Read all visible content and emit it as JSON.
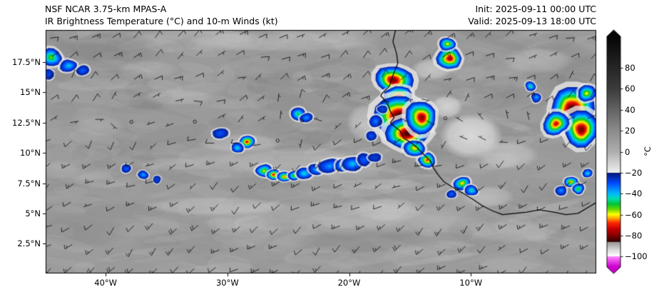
{
  "header": {
    "model": "NSF NCAR 3.75-km MPAS-A",
    "field": "IR Brightness Temperature (°C) and 10-m Winds (kt)",
    "init": "Init: 2025-09-11 00:00 UTC",
    "valid": "Valid: 2025-09-13 18:00 UTC"
  },
  "chart_data": {
    "type": "heatmap",
    "title": "IR Brightness Temperature (°C) and 10-m Winds (kt)",
    "model": "NSF NCAR 3.75-km MPAS-A",
    "init_time": "2025-09-11 00:00 UTC",
    "valid_time": "2025-09-13 18:00 UTC",
    "region": "West Africa and eastern tropical Atlantic",
    "lon_range": [
      -44.93,
      0.3
    ],
    "lat_range": [
      0.04,
      20.15
    ],
    "x_ticks": [
      {
        "label": "40°W",
        "lon": -40
      },
      {
        "label": "30°W",
        "lon": -30
      },
      {
        "label": "20°W",
        "lon": -20
      },
      {
        "label": "10°W",
        "lon": -10
      }
    ],
    "y_ticks": [
      {
        "label": "17.5°N",
        "lat": 17.5
      },
      {
        "label": "15°N",
        "lat": 15
      },
      {
        "label": "12.5°N",
        "lat": 12.5
      },
      {
        "label": "10°N",
        "lat": 10
      },
      {
        "label": "7.5°N",
        "lat": 7.5
      },
      {
        "label": "5°N",
        "lat": 5
      },
      {
        "label": "2.5°N",
        "lat": 2.5
      }
    ],
    "colorbar": {
      "label": "°C",
      "ticks": [
        80,
        60,
        40,
        20,
        0,
        -20,
        -40,
        -60,
        -80,
        -100
      ],
      "vmin": -110,
      "vmax": 110,
      "stops": [
        [
          110,
          "#060606"
        ],
        [
          60,
          "#3c3c3c"
        ],
        [
          20,
          "#8c8c8c"
        ],
        [
          0,
          "#aeaeae"
        ],
        [
          -20,
          "#f0f0f0"
        ],
        [
          -20.5,
          "#081878"
        ],
        [
          -30,
          "#0048ff"
        ],
        [
          -40,
          "#00b8ff"
        ],
        [
          -45,
          "#00ddb0"
        ],
        [
          -50,
          "#00c434"
        ],
        [
          -55,
          "#64d800"
        ],
        [
          -60,
          "#ffff00"
        ],
        [
          -64,
          "#ffa000"
        ],
        [
          -68,
          "#ff2800"
        ],
        [
          -74,
          "#c40000"
        ],
        [
          -80,
          "#840000"
        ],
        [
          -86,
          "#2e0000"
        ],
        [
          -86.5,
          "#969696"
        ],
        [
          -94,
          "#dadada"
        ],
        [
          -100,
          "#ffffff"
        ],
        [
          -100.5,
          "#ff80ff"
        ],
        [
          -110,
          "#cc00cc"
        ]
      ]
    },
    "background": "Mostly gray shades (IR ~0 to 30 °C, clear/low cloud); colored cells are cold convective tops below -20 °C",
    "features": [
      [
        -16.4,
        16.0,
        1.5,
        1.1,
        -80
      ],
      [
        -15.9,
        14.6,
        1.2,
        0.9,
        -76
      ],
      [
        -15.8,
        13.0,
        2.1,
        1.7,
        -86
      ],
      [
        -15.2,
        11.6,
        1.8,
        1.3,
        -84
      ],
      [
        -14.0,
        12.9,
        1.2,
        1.4,
        -78
      ],
      [
        -13.6,
        9.4,
        0.7,
        0.6,
        -68
      ],
      [
        -14.6,
        10.4,
        0.8,
        0.6,
        -62
      ],
      [
        -1.7,
        13.6,
        1.7,
        1.9,
        -84
      ],
      [
        -0.9,
        11.9,
        1.5,
        1.4,
        -80
      ],
      [
        -3.0,
        12.4,
        1.0,
        0.9,
        -72
      ],
      [
        -0.5,
        14.9,
        0.8,
        0.7,
        -60
      ],
      [
        -5.1,
        15.5,
        0.5,
        0.4,
        -48
      ],
      [
        -4.6,
        14.6,
        0.4,
        0.4,
        -40
      ],
      [
        -11.7,
        17.8,
        1.0,
        0.9,
        -76
      ],
      [
        -11.9,
        19.0,
        0.6,
        0.5,
        -60
      ],
      [
        -44.5,
        17.9,
        0.9,
        0.7,
        -55
      ],
      [
        -43.0,
        17.2,
        0.7,
        0.5,
        -42
      ],
      [
        -41.9,
        16.8,
        0.5,
        0.4,
        -34
      ],
      [
        -44.7,
        16.5,
        0.4,
        0.4,
        -30
      ],
      [
        -24.2,
        13.2,
        0.6,
        0.5,
        -50
      ],
      [
        -23.5,
        12.9,
        0.5,
        0.4,
        -38
      ],
      [
        -30.6,
        11.6,
        0.6,
        0.4,
        -32
      ],
      [
        -28.4,
        10.9,
        0.6,
        0.5,
        -72
      ],
      [
        -29.2,
        10.4,
        0.5,
        0.4,
        -45
      ],
      [
        -27.0,
        8.5,
        0.7,
        0.5,
        -58
      ],
      [
        -26.2,
        8.2,
        0.6,
        0.5,
        -72
      ],
      [
        -25.3,
        8.0,
        0.6,
        0.4,
        -66
      ],
      [
        -24.5,
        8.1,
        0.5,
        0.4,
        -55
      ],
      [
        -23.7,
        8.3,
        0.6,
        0.5,
        -45
      ],
      [
        -22.7,
        8.6,
        0.7,
        0.5,
        -40
      ],
      [
        -21.6,
        8.9,
        0.8,
        0.6,
        -38
      ],
      [
        -20.5,
        8.9,
        0.7,
        0.5,
        -46
      ],
      [
        -19.7,
        9.1,
        0.9,
        0.6,
        -42
      ],
      [
        -18.8,
        9.4,
        0.6,
        0.5,
        -34
      ],
      [
        -17.9,
        9.6,
        0.5,
        0.4,
        -28
      ],
      [
        -38.3,
        8.7,
        0.4,
        0.3,
        -34
      ],
      [
        -36.9,
        8.2,
        0.4,
        0.35,
        -40
      ],
      [
        -35.8,
        7.8,
        0.3,
        0.3,
        -30
      ],
      [
        -10.7,
        7.5,
        0.7,
        0.6,
        -62
      ],
      [
        -9.9,
        6.9,
        0.5,
        0.4,
        -46
      ],
      [
        -11.6,
        6.6,
        0.4,
        0.35,
        -35
      ],
      [
        -1.8,
        7.6,
        0.6,
        0.5,
        -64
      ],
      [
        -1.2,
        7.0,
        0.5,
        0.4,
        -54
      ],
      [
        -2.6,
        6.9,
        0.45,
        0.4,
        -38
      ],
      [
        -0.4,
        8.3,
        0.4,
        0.35,
        -45
      ],
      [
        -17.8,
        12.6,
        0.5,
        0.5,
        -36
      ],
      [
        -18.2,
        11.4,
        0.4,
        0.4,
        -32
      ],
      [
        -17.3,
        13.6,
        0.4,
        0.3,
        -30
      ]
    ],
    "cloud_bands": [
      [
        -24.0,
        9.2,
        7.5,
        1.3,
        208,
        0.45
      ],
      [
        -29.0,
        10.8,
        3.5,
        0.8,
        212,
        0.45
      ],
      [
        -21.0,
        4.6,
        13.5,
        1.5,
        198,
        0.4
      ],
      [
        -31.0,
        5.6,
        6.0,
        0.8,
        215,
        0.45
      ],
      [
        -10.0,
        11.4,
        2.6,
        1.9,
        230,
        0.85
      ],
      [
        -7.0,
        9.8,
        2.6,
        1.2,
        215,
        0.55
      ],
      [
        -25.0,
        19.2,
        8.0,
        0.9,
        208,
        0.4
      ],
      [
        -34.0,
        14.6,
        3.0,
        0.7,
        204,
        0.35
      ],
      [
        -40.5,
        12.2,
        2.2,
        0.9,
        200,
        0.3
      ],
      [
        -16.8,
        5.3,
        3.0,
        1.0,
        208,
        0.45
      ],
      [
        -4.5,
        17.6,
        3.0,
        1.1,
        210,
        0.45
      ],
      [
        -13.2,
        16.9,
        1.7,
        0.9,
        225,
        0.6
      ],
      [
        -18.6,
        12.5,
        1.6,
        1.6,
        222,
        0.55
      ],
      [
        -44.0,
        8.6,
        2.0,
        0.8,
        195,
        0.3
      ],
      [
        -6.5,
        3.5,
        4.0,
        1.0,
        203,
        0.35
      ],
      [
        -36.5,
        16.9,
        2.6,
        0.8,
        200,
        0.3
      ],
      [
        -12.0,
        13.8,
        1.3,
        1.0,
        228,
        0.7
      ],
      [
        -8.6,
        6.4,
        2.2,
        0.9,
        210,
        0.5
      ]
    ],
    "dark_patches": [
      [
        -40.0,
        18.5,
        4.5,
        1.6,
        118,
        0.3
      ],
      [
        -19.0,
        2.8,
        6.0,
        1.2,
        120,
        0.3
      ],
      [
        -2.5,
        17.3,
        3.5,
        2.2,
        115,
        0.35
      ],
      [
        -8.0,
        15.0,
        2.5,
        1.5,
        124,
        0.3
      ],
      [
        -42.0,
        3.5,
        4.0,
        1.5,
        124,
        0.25
      ],
      [
        -27.0,
        15.5,
        4.0,
        1.3,
        126,
        0.25
      ],
      [
        -33.0,
        2.5,
        5.0,
        1.0,
        124,
        0.25
      ]
    ],
    "coastline": [
      [
        -16.2,
        20.1
      ],
      [
        -16.4,
        19.2
      ],
      [
        -16.1,
        18.2
      ],
      [
        -16.0,
        17.4
      ],
      [
        -16.4,
        16.4
      ],
      [
        -16.7,
        15.5
      ],
      [
        -17.3,
        14.9
      ],
      [
        -17.4,
        14.7
      ],
      [
        -17.1,
        14.4
      ],
      [
        -16.8,
        13.9
      ],
      [
        -16.6,
        13.4
      ],
      [
        -16.3,
        12.9
      ],
      [
        -16.6,
        12.5
      ],
      [
        -16.3,
        12.2
      ],
      [
        -15.8,
        11.8
      ],
      [
        -15.5,
        11.2
      ],
      [
        -15.0,
        10.9
      ],
      [
        -14.5,
        10.5
      ],
      [
        -13.9,
        9.9
      ],
      [
        -13.3,
        9.3
      ],
      [
        -13.1,
        8.8
      ],
      [
        -12.7,
        8.2
      ],
      [
        -12.2,
        7.6
      ],
      [
        -11.4,
        7.1
      ],
      [
        -10.7,
        6.7
      ],
      [
        -9.9,
        6.2
      ],
      [
        -9.0,
        5.6
      ],
      [
        -8.2,
        5.2
      ],
      [
        -7.4,
        4.9
      ],
      [
        -6.4,
        5.0
      ],
      [
        -5.4,
        5.1
      ],
      [
        -4.4,
        5.3
      ],
      [
        -3.2,
        5.1
      ],
      [
        -2.2,
        4.9
      ],
      [
        -1.2,
        5.0
      ],
      [
        -0.2,
        5.6
      ],
      [
        0.3,
        5.9
      ]
    ],
    "wind": {
      "units": "kt",
      "typical_speed_kt": 10,
      "regimes": [
        {
          "region": "north of ~13°N",
          "from": "NE (trade winds)"
        },
        {
          "region": "south of ~12°N",
          "from": "SW (monsoon flow)"
        },
        {
          "region": "near ~12°N",
          "from": "light/variable (calm circles)"
        }
      ]
    }
  }
}
